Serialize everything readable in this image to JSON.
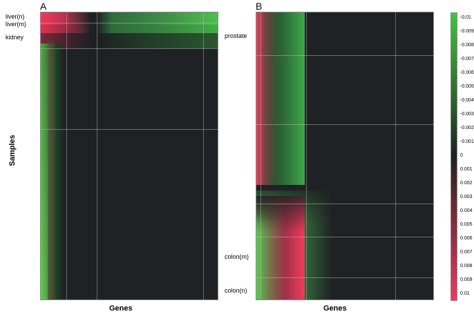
{
  "chart_data": [
    {
      "panel": "A",
      "type": "heatmap",
      "title": "A",
      "xlabel": "Genes",
      "ylabel": "Samples",
      "row_labels": [
        "liver(n)",
        "liver(m)",
        "kidney"
      ],
      "grid": true,
      "colormap": {
        "negative": "#3cc83c",
        "zero": "#202224",
        "positive": "#ee3a5c"
      }
    },
    {
      "panel": "B",
      "type": "heatmap",
      "title": "B",
      "xlabel": "Genes",
      "row_labels": [
        "prostate",
        "colon(m)",
        "colon(n)"
      ],
      "grid": true,
      "colormap": {
        "negative": "#3cc83c",
        "zero": "#202224",
        "positive": "#ee3a5c"
      }
    }
  ],
  "color_scale": {
    "ticks": [
      "-0.01",
      "-0.009",
      "-0.008",
      "-0.007",
      "-0.006",
      "-0.005",
      "-0.004",
      "-0.003",
      "-0.002",
      "-0.001",
      "0",
      "0.001",
      "0.002",
      "0.003",
      "0.004",
      "0.005",
      "0.006",
      "0.007",
      "0.008",
      "0.009",
      "0.01"
    ],
    "min": -0.01,
    "max": 0.01,
    "colors": [
      "#3cc83c",
      "#202224",
      "#ee3a5c"
    ]
  }
}
